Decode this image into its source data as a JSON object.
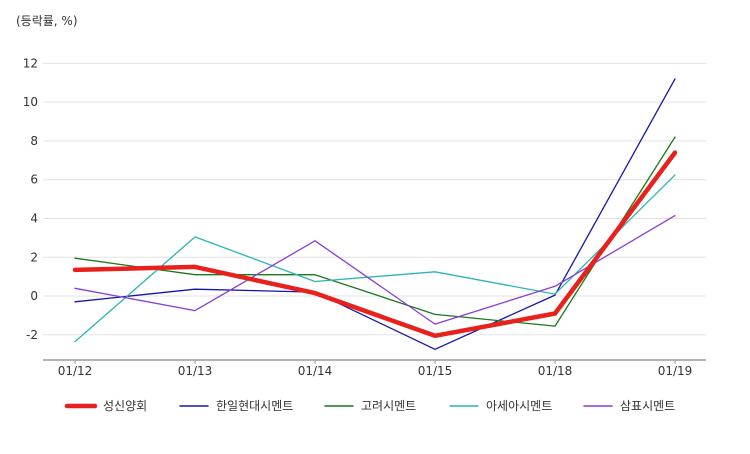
{
  "chart_data": {
    "type": "line",
    "unit_label": "(등락률, %)",
    "categories": [
      "01/12",
      "01/13",
      "01/14",
      "01/15",
      "01/18",
      "01/19"
    ],
    "ylim": [
      -3.3,
      13
    ],
    "yticks": [
      -2,
      0,
      2,
      4,
      6,
      8,
      10,
      12
    ],
    "grid": true,
    "legend_position": "bottom",
    "series": [
      {
        "name": "성신양회",
        "color": "#e8211c",
        "emphasis": true,
        "values": [
          1.35,
          1.5,
          0.15,
          -2.05,
          -0.9,
          7.4
        ]
      },
      {
        "name": "한일현대시멘트",
        "color": "#1515a8",
        "values": [
          -0.3,
          0.35,
          0.2,
          -2.75,
          0.05,
          11.2
        ]
      },
      {
        "name": "고려시멘트",
        "color": "#1a7a1a",
        "values": [
          1.95,
          1.1,
          1.1,
          -0.95,
          -1.55,
          8.2
        ]
      },
      {
        "name": "아세아시멘트",
        "color": "#2ab5b5",
        "values": [
          -2.35,
          3.05,
          0.75,
          1.25,
          0.1,
          6.25
        ]
      },
      {
        "name": "삼표시멘트",
        "color": "#8a3cd6",
        "values": [
          0.4,
          -0.75,
          2.85,
          -1.45,
          0.5,
          4.15
        ]
      }
    ]
  }
}
